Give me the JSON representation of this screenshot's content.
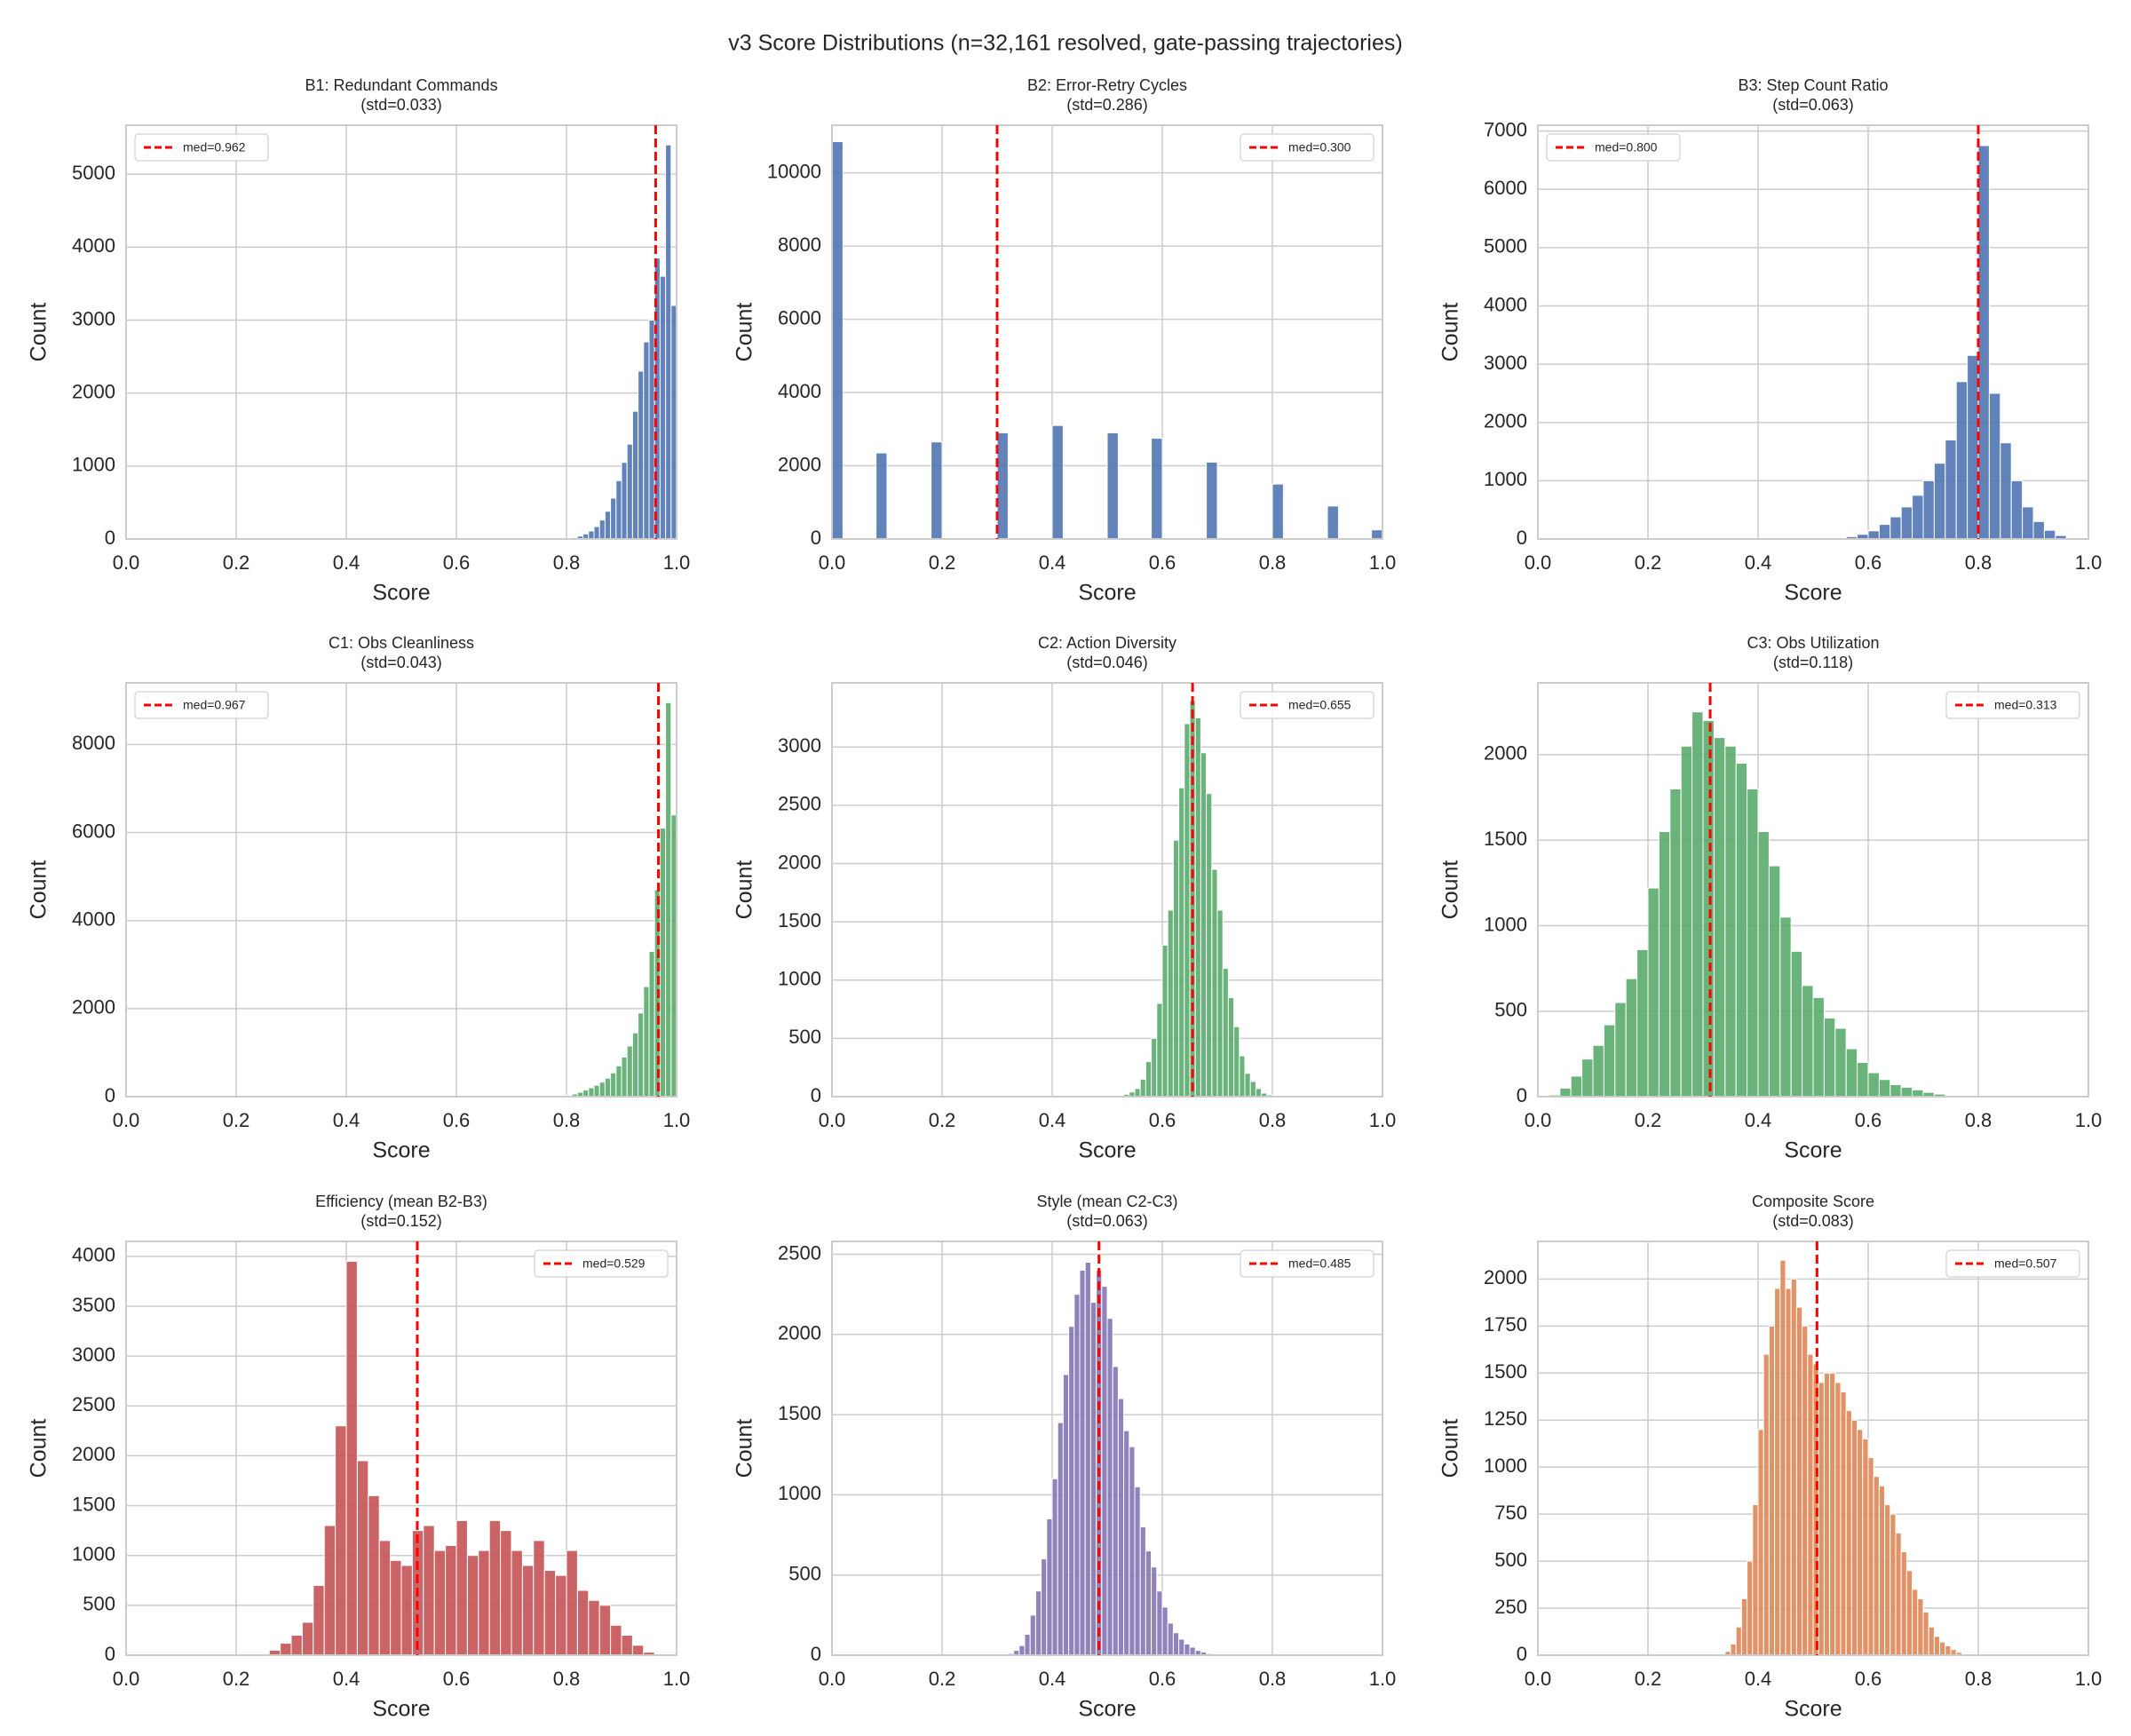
{
  "title": "v3 Score Distributions  (n=32,161 resolved, gate-passing trajectories)",
  "chart_data": [
    {
      "type": "histogram",
      "title": "B1: Redundant Commands",
      "subtitle": "(std=0.033)",
      "x_label": "Score",
      "y_label": "Count",
      "color": "#4c72b0",
      "grid": true,
      "legend": "upper left",
      "bins": [
        0.8,
        0.81,
        0.82,
        0.83,
        0.84,
        0.85,
        0.86,
        0.87,
        0.88,
        0.89,
        0.9,
        0.91,
        0.92,
        0.93,
        0.94,
        0.95,
        0.96,
        0.97,
        0.98,
        0.99,
        1
      ],
      "counts": [
        10,
        20,
        40,
        70,
        110,
        170,
        260,
        380,
        560,
        800,
        1050,
        1300,
        1750,
        2300,
        2700,
        3000,
        3850,
        3600,
        5400,
        3200
      ],
      "median": {
        "value": 0.962,
        "label": "med=0.962",
        "color": "#ff0000"
      },
      "xlim": [
        0,
        1
      ],
      "xticks": [
        {
          "value": 0,
          "label": "0.0"
        },
        0.2,
        0.4,
        0.6,
        0.8,
        {
          "value": 1,
          "label": "1.0"
        }
      ],
      "ylim": [
        0,
        5670
      ],
      "yticks": [
        0,
        1000,
        2000,
        3000,
        4000,
        5000
      ]
    },
    {
      "type": "histogram",
      "title": "B2: Error-Retry Cycles",
      "subtitle": "(std=0.286)",
      "x_label": "Score",
      "y_label": "Count",
      "color": "#4c72b0",
      "grid": true,
      "legend": "upper right",
      "bins": [
        0,
        0.02,
        0.04,
        0.06,
        0.08,
        0.1,
        0.12,
        0.14,
        0.16,
        0.18,
        0.2,
        0.22,
        0.24,
        0.26,
        0.28,
        0.3,
        0.32,
        0.34,
        0.36,
        0.38,
        0.4,
        0.42,
        0.44,
        0.46,
        0.48,
        0.5,
        0.52,
        0.54,
        0.56,
        0.58,
        0.6,
        0.62,
        0.64,
        0.66,
        0.68,
        0.7,
        0.72,
        0.74,
        0.76,
        0.78,
        0.8,
        0.82,
        0.84,
        0.86,
        0.88,
        0.9,
        0.92,
        0.94,
        0.96,
        0.98,
        1
      ],
      "counts": [
        10850,
        0,
        0,
        0,
        2350,
        0,
        0,
        0,
        0,
        2650,
        0,
        0,
        0,
        0,
        0,
        2900,
        0,
        0,
        0,
        0,
        3100,
        0,
        0,
        0,
        0,
        2900,
        0,
        0,
        0,
        2750,
        0,
        0,
        0,
        0,
        2100,
        0,
        0,
        0,
        0,
        0,
        1500,
        0,
        0,
        0,
        0,
        900,
        0,
        0,
        0,
        250
      ],
      "median": {
        "value": 0.3,
        "label": "med=0.300",
        "color": "#ff0000"
      },
      "xlim": [
        0,
        1
      ],
      "xticks": [
        {
          "value": 0,
          "label": "0.0"
        },
        0.2,
        0.4,
        0.6,
        0.8,
        {
          "value": 1,
          "label": "1.0"
        }
      ],
      "ylim": [
        0,
        11300
      ],
      "yticks": [
        0,
        2000,
        4000,
        6000,
        8000,
        10000
      ]
    },
    {
      "type": "histogram",
      "title": "B3: Step Count Ratio",
      "subtitle": "(std=0.063)",
      "x_label": "Score",
      "y_label": "Count",
      "color": "#4c72b0",
      "grid": true,
      "legend": "upper left",
      "bins": [
        0.54,
        0.56,
        0.58,
        0.6,
        0.62,
        0.64,
        0.66,
        0.68,
        0.7,
        0.72,
        0.74,
        0.76,
        0.78,
        0.8,
        0.82,
        0.84,
        0.86,
        0.88,
        0.9,
        0.92,
        0.94,
        0.96,
        0.98
      ],
      "counts": [
        20,
        40,
        80,
        140,
        250,
        380,
        550,
        750,
        1000,
        1300,
        1700,
        2700,
        3150,
        6750,
        2500,
        1650,
        1000,
        550,
        300,
        150,
        60,
        20
      ],
      "median": {
        "value": 0.8,
        "label": "med=0.800",
        "color": "#ff0000"
      },
      "xlim": [
        0,
        1
      ],
      "xticks": [
        {
          "value": 0,
          "label": "0.0"
        },
        0.2,
        0.4,
        0.6,
        0.8,
        {
          "value": 1,
          "label": "1.0"
        }
      ],
      "ylim": [
        0,
        7100
      ],
      "yticks": [
        0,
        1000,
        2000,
        3000,
        4000,
        5000,
        6000,
        7000
      ]
    },
    {
      "type": "histogram",
      "title": "C1: Obs Cleanliness",
      "subtitle": "(std=0.043)",
      "x_label": "Score",
      "y_label": "Count",
      "color": "#55a868",
      "grid": true,
      "legend": "upper left",
      "bins": [
        0.79,
        0.8,
        0.81,
        0.82,
        0.83,
        0.84,
        0.85,
        0.86,
        0.87,
        0.88,
        0.89,
        0.9,
        0.91,
        0.92,
        0.93,
        0.94,
        0.95,
        0.96,
        0.97,
        0.98,
        0.99,
        1
      ],
      "counts": [
        15,
        30,
        60,
        100,
        150,
        200,
        260,
        330,
        420,
        540,
        700,
        900,
        1150,
        1450,
        1900,
        2500,
        3300,
        4700,
        6100,
        8950,
        6400
      ],
      "median": {
        "value": 0.967,
        "label": "med=0.967",
        "color": "#ff0000"
      },
      "xlim": [
        0,
        1
      ],
      "xticks": [
        {
          "value": 0,
          "label": "0.0"
        },
        0.2,
        0.4,
        0.6,
        0.8,
        {
          "value": 1,
          "label": "1.0"
        }
      ],
      "ylim": [
        0,
        9400
      ],
      "yticks": [
        0,
        2000,
        4000,
        6000,
        8000
      ]
    },
    {
      "type": "histogram",
      "title": "C2: Action Diversity",
      "subtitle": "(std=0.046)",
      "x_label": "Score",
      "y_label": "Count",
      "color": "#55a868",
      "grid": true,
      "legend": "upper right",
      "bins": [
        0.52,
        0.53,
        0.54,
        0.55,
        0.56,
        0.57,
        0.58,
        0.59,
        0.6,
        0.61,
        0.62,
        0.63,
        0.64,
        0.65,
        0.66,
        0.67,
        0.68,
        0.69,
        0.7,
        0.71,
        0.72,
        0.73,
        0.74,
        0.75,
        0.76,
        0.77,
        0.78,
        0.79,
        0.8,
        0.81
      ],
      "counts": [
        10,
        20,
        40,
        70,
        150,
        300,
        500,
        800,
        1300,
        1600,
        2200,
        2650,
        3200,
        3400,
        3250,
        2950,
        2600,
        1950,
        1600,
        1100,
        850,
        600,
        350,
        200,
        130,
        70,
        30,
        15,
        5
      ],
      "median": {
        "value": 0.655,
        "label": "med=0.655",
        "color": "#ff0000"
      },
      "xlim": [
        0,
        1
      ],
      "xticks": [
        {
          "value": 0,
          "label": "0.0"
        },
        0.2,
        0.4,
        0.6,
        0.8,
        {
          "value": 1,
          "label": "1.0"
        }
      ],
      "ylim": [
        0,
        3550
      ],
      "yticks": [
        0,
        500,
        1000,
        1500,
        2000,
        2500,
        3000
      ]
    },
    {
      "type": "histogram",
      "title": "C3: Obs Utilization",
      "subtitle": "(std=0.118)",
      "x_label": "Score",
      "y_label": "Count",
      "color": "#55a868",
      "grid": true,
      "legend": "upper right",
      "bins": [
        0.02,
        0.04,
        0.06,
        0.08,
        0.1,
        0.12,
        0.14,
        0.16,
        0.18,
        0.2,
        0.22,
        0.24,
        0.26,
        0.28,
        0.3,
        0.32,
        0.34,
        0.36,
        0.38,
        0.4,
        0.42,
        0.44,
        0.46,
        0.48,
        0.5,
        0.52,
        0.54,
        0.56,
        0.58,
        0.6,
        0.62,
        0.64,
        0.66,
        0.68,
        0.7,
        0.72,
        0.74
      ],
      "counts": [
        10,
        50,
        120,
        220,
        300,
        420,
        550,
        690,
        860,
        1220,
        1550,
        1800,
        2050,
        2250,
        2200,
        2100,
        2050,
        1950,
        1800,
        1550,
        1350,
        1050,
        850,
        650,
        580,
        460,
        400,
        280,
        200,
        140,
        100,
        70,
        55,
        40,
        25,
        15
      ],
      "median": {
        "value": 0.313,
        "label": "med=0.313",
        "color": "#ff0000"
      },
      "xlim": [
        0,
        1
      ],
      "xticks": [
        {
          "value": 0,
          "label": "0.0"
        },
        0.2,
        0.4,
        0.6,
        0.8,
        {
          "value": 1,
          "label": "1.0"
        }
      ],
      "ylim": [
        0,
        2420
      ],
      "yticks": [
        0,
        500,
        1000,
        1500,
        2000
      ]
    },
    {
      "type": "histogram",
      "title": "Efficiency (mean B2-B3)",
      "subtitle": "(std=0.152)",
      "x_label": "Score",
      "y_label": "Count",
      "color": "#c44e52",
      "grid": true,
      "legend": "upper right",
      "bins": [
        0.26,
        0.28,
        0.3,
        0.32,
        0.34,
        0.36,
        0.38,
        0.4,
        0.42,
        0.44,
        0.46,
        0.48,
        0.5,
        0.52,
        0.54,
        0.56,
        0.58,
        0.6,
        0.62,
        0.64,
        0.66,
        0.68,
        0.7,
        0.72,
        0.74,
        0.76,
        0.78,
        0.8,
        0.82,
        0.84,
        0.86,
        0.88,
        0.9,
        0.92,
        0.94,
        0.96
      ],
      "counts": [
        50,
        120,
        200,
        330,
        700,
        1300,
        2300,
        3950,
        1950,
        1600,
        1150,
        950,
        900,
        1250,
        1300,
        1050,
        1100,
        1350,
        1000,
        1050,
        1350,
        1250,
        1050,
        900,
        1150,
        850,
        800,
        1050,
        650,
        550,
        500,
        300,
        200,
        100,
        30
      ],
      "median": {
        "value": 0.529,
        "label": "med=0.529",
        "color": "#ff0000"
      },
      "xlim": [
        0,
        1
      ],
      "xticks": [
        {
          "value": 0,
          "label": "0.0"
        },
        0.2,
        0.4,
        0.6,
        0.8,
        {
          "value": 1,
          "label": "1.0"
        }
      ],
      "ylim": [
        0,
        4150
      ],
      "yticks": [
        0,
        500,
        1000,
        1500,
        2000,
        2500,
        3000,
        3500,
        4000
      ]
    },
    {
      "type": "histogram",
      "title": "Style (mean C2-C3)",
      "subtitle": "(std=0.063)",
      "x_label": "Score",
      "y_label": "Count",
      "color": "#8172b3",
      "grid": true,
      "legend": "upper right",
      "bins": [
        0.32,
        0.33,
        0.34,
        0.35,
        0.36,
        0.37,
        0.38,
        0.39,
        0.4,
        0.41,
        0.42,
        0.43,
        0.44,
        0.45,
        0.46,
        0.47,
        0.48,
        0.49,
        0.5,
        0.51,
        0.52,
        0.53,
        0.54,
        0.55,
        0.56,
        0.57,
        0.58,
        0.59,
        0.6,
        0.61,
        0.62,
        0.63,
        0.64,
        0.65,
        0.66,
        0.67,
        0.68,
        0.69,
        0.7
      ],
      "counts": [
        10,
        30,
        60,
        130,
        250,
        400,
        600,
        850,
        1100,
        1450,
        1750,
        2050,
        2250,
        2400,
        2450,
        2200,
        2400,
        2300,
        2100,
        1800,
        1600,
        1400,
        1300,
        1050,
        800,
        650,
        550,
        400,
        300,
        200,
        140,
        100,
        70,
        50,
        30,
        20,
        10,
        5
      ],
      "median": {
        "value": 0.485,
        "label": "med=0.485",
        "color": "#ff0000"
      },
      "xlim": [
        0,
        1
      ],
      "xticks": [
        {
          "value": 0,
          "label": "0.0"
        },
        0.2,
        0.4,
        0.6,
        0.8,
        {
          "value": 1,
          "label": "1.0"
        }
      ],
      "ylim": [
        0,
        2580
      ],
      "yticks": [
        0,
        500,
        1000,
        1500,
        2000,
        2500
      ]
    },
    {
      "type": "histogram",
      "title": "Composite Score",
      "subtitle": "(std=0.083)",
      "x_label": "Score",
      "y_label": "Count",
      "color": "#dd8452",
      "grid": true,
      "legend": "upper right",
      "bins": [
        0.34,
        0.35,
        0.36,
        0.37,
        0.38,
        0.39,
        0.4,
        0.41,
        0.42,
        0.43,
        0.44,
        0.45,
        0.46,
        0.47,
        0.48,
        0.49,
        0.5,
        0.51,
        0.52,
        0.53,
        0.54,
        0.55,
        0.56,
        0.57,
        0.58,
        0.59,
        0.6,
        0.61,
        0.62,
        0.63,
        0.64,
        0.65,
        0.66,
        0.67,
        0.68,
        0.69,
        0.7,
        0.71,
        0.72,
        0.73,
        0.74,
        0.75,
        0.76,
        0.77
      ],
      "counts": [
        20,
        60,
        150,
        300,
        500,
        800,
        1200,
        1600,
        1750,
        1950,
        2100,
        1950,
        2000,
        1850,
        1750,
        1600,
        1550,
        1450,
        1500,
        1500,
        1450,
        1400,
        1300,
        1250,
        1200,
        1150,
        1050,
        950,
        900,
        800,
        750,
        650,
        550,
        450,
        350,
        300,
        230,
        150,
        100,
        70,
        50,
        30,
        15
      ],
      "median": {
        "value": 0.507,
        "label": "med=0.507",
        "color": "#ff0000"
      },
      "xlim": [
        0,
        1
      ],
      "xticks": [
        {
          "value": 0,
          "label": "0.0"
        },
        0.2,
        0.4,
        0.6,
        0.8,
        {
          "value": 1,
          "label": "1.0"
        }
      ],
      "ylim": [
        0,
        2200
      ],
      "yticks": [
        0,
        250,
        500,
        750,
        1000,
        1250,
        1500,
        1750,
        2000
      ]
    }
  ]
}
